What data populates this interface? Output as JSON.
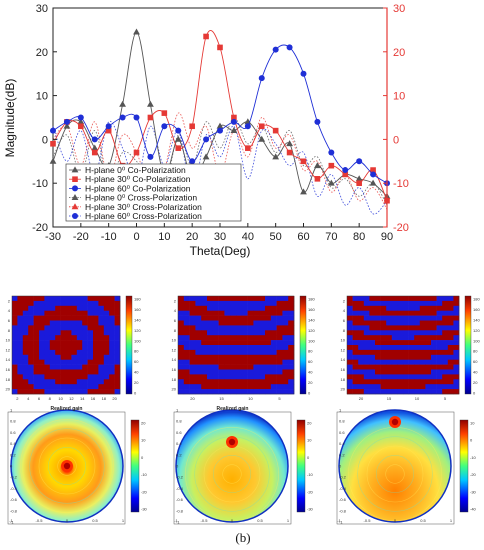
{
  "chart_data": [
    {
      "type": "line",
      "title": "",
      "xlabel": "Theta(Deg)",
      "ylabel": "Magnitude(dB)",
      "xlim": [
        -30,
        90
      ],
      "ylim": [
        -20,
        30
      ],
      "y2lim": [
        -20,
        30
      ],
      "xticks": [
        "-30",
        "-20",
        "-10",
        "0",
        "10",
        "20",
        "30",
        "40",
        "50",
        "60",
        "70",
        "80",
        "90"
      ],
      "yticks": [
        "-20",
        "-10",
        "0",
        "10",
        "20",
        "30"
      ],
      "y2ticks": [
        "-20",
        "-10",
        "0",
        "10",
        "20",
        "30"
      ],
      "legend_position": "lower-left",
      "colors": {
        "gray": "#555555",
        "red": "#e53935",
        "blue": "#1f2fd6",
        "right_axis": "#e53935"
      },
      "series": [
        {
          "name": "H-plane 0⁰  Co-Polarization",
          "color": "#555555",
          "marker": "triangle",
          "line": "solid",
          "x": [
            -30,
            -25,
            -20,
            -15,
            -10,
            -5,
            0,
            5,
            10,
            15,
            20,
            25,
            30,
            35,
            40,
            45,
            50,
            55,
            60,
            65,
            70,
            75,
            80,
            85,
            90
          ],
          "y": [
            -5,
            3,
            4,
            -2,
            -6,
            8,
            24.5,
            8,
            -8,
            0,
            -9,
            -4,
            3,
            2,
            4,
            0,
            -4,
            -1,
            -12,
            -6,
            -10,
            -8,
            -9,
            -10,
            -13
          ]
        },
        {
          "name": "H-plane 30⁰  Co-Polarization",
          "color": "#e53935",
          "marker": "square",
          "line": "solid",
          "x": [
            -30,
            -25,
            -20,
            -15,
            -10,
            -5,
            0,
            5,
            10,
            15,
            20,
            25,
            30,
            35,
            40,
            45,
            50,
            55,
            60,
            65,
            70,
            75,
            80,
            85,
            90
          ],
          "y": [
            -1,
            4,
            3,
            -3,
            2,
            -6,
            -3,
            5,
            6,
            -2,
            3,
            23.5,
            21,
            5,
            -2,
            3,
            2,
            -3,
            -5,
            -9,
            -6,
            -8,
            -10,
            -7,
            -14
          ]
        },
        {
          "name": "H-plane 60⁰  Co-Polarization",
          "color": "#1f2fd6",
          "marker": "circle",
          "line": "solid",
          "x": [
            -30,
            -25,
            -20,
            -15,
            -10,
            -5,
            0,
            5,
            10,
            15,
            20,
            25,
            30,
            35,
            40,
            45,
            50,
            55,
            60,
            65,
            70,
            75,
            80,
            85,
            90
          ],
          "y": [
            2,
            4,
            5,
            0,
            3,
            5,
            5,
            -4,
            3,
            2,
            -5,
            0,
            2,
            4,
            3,
            14,
            20.5,
            21,
            15,
            4,
            -3,
            -7,
            -5,
            -8,
            -10
          ]
        },
        {
          "name": "H-plane 0⁰  Cross-Polarization",
          "color": "#555555",
          "marker": "triangle",
          "line": "dotted",
          "x": [
            -30,
            -25,
            -20,
            -15,
            -10,
            -5,
            0,
            5,
            10,
            15,
            20,
            25,
            30,
            35,
            40,
            45,
            50,
            55,
            60,
            65,
            70,
            75,
            80,
            85,
            90
          ],
          "y": [
            -4,
            1,
            -8,
            2,
            -10,
            -3,
            -5,
            -9,
            -12,
            1,
            -6,
            4,
            -2,
            5,
            -1,
            3,
            -3,
            2,
            -6,
            -4,
            -11,
            -9,
            -13,
            -10,
            -15
          ]
        },
        {
          "name": "H-plane 30⁰  Cross-Polarization",
          "color": "#e53935",
          "marker": "triangle",
          "line": "dotted",
          "x": [
            -30,
            -25,
            -20,
            -15,
            -10,
            -5,
            0,
            5,
            10,
            15,
            20,
            25,
            30,
            35,
            40,
            45,
            50,
            55,
            60,
            65,
            70,
            75,
            80,
            85,
            90
          ],
          "y": [
            0,
            3,
            -6,
            4,
            -9,
            1,
            -3,
            -11,
            -7,
            6,
            -2,
            3,
            -8,
            2,
            -4,
            5,
            -2,
            1,
            -7,
            -5,
            -12,
            -8,
            -14,
            -11,
            -16
          ]
        },
        {
          "name": "H-plane 60⁰  Cross-Polarization",
          "color": "#1f2fd6",
          "marker": "circle",
          "line": "dotted",
          "x": [
            -30,
            -25,
            -20,
            -15,
            -10,
            -5,
            0,
            5,
            10,
            15,
            20,
            25,
            30,
            35,
            40,
            45,
            50,
            55,
            60,
            65,
            70,
            75,
            80,
            85,
            90
          ],
          "y": [
            3,
            -5,
            2,
            -8,
            4,
            -2,
            -10,
            3,
            -6,
            2,
            -12,
            1,
            -4,
            3,
            -9,
            2,
            -1,
            -6,
            -3,
            -13,
            -8,
            -15,
            -11,
            -17,
            -14
          ]
        }
      ]
    },
    {
      "type": "heatmap",
      "panels": [
        {
          "pattern": "rings",
          "xticks": [
            "2",
            "4",
            "6",
            "8",
            "10",
            "12",
            "14",
            "16",
            "18",
            "20"
          ],
          "yticks": [
            "2",
            "4",
            "6",
            "8",
            "10",
            "12",
            "14",
            "16",
            "18",
            "20"
          ],
          "colorbar_ticks": [
            "180",
            "160",
            "140",
            "120",
            "100",
            "80",
            "60",
            "40",
            "20",
            "0"
          ]
        },
        {
          "pattern": "arcs-wide",
          "xticks": [
            "20",
            "15",
            "10",
            "5"
          ],
          "yticks": [
            "2",
            "4",
            "6",
            "8",
            "10",
            "12",
            "14",
            "16",
            "18",
            "20"
          ],
          "colorbar_ticks": [
            "180",
            "160",
            "140",
            "120",
            "100",
            "80",
            "60",
            "40",
            "20",
            "0"
          ]
        },
        {
          "pattern": "arcs-narrow",
          "xticks": [
            "20",
            "15",
            "10",
            "5"
          ],
          "yticks": [
            "2",
            "4",
            "6",
            "8",
            "10",
            "12",
            "14",
            "16",
            "18",
            "20"
          ],
          "colorbar_ticks": [
            "180",
            "160",
            "140",
            "120",
            "100",
            "80",
            "60",
            "40",
            "20",
            "0"
          ]
        }
      ]
    },
    {
      "type": "heatmap",
      "panels": [
        {
          "title": "Realized gain",
          "beam": "center",
          "xticks": [
            "-1",
            "-0.5",
            "0",
            "0.5",
            "1"
          ],
          "yticks": [
            "-1",
            "-0.8",
            "-0.6",
            "-0.4",
            "-0.2",
            "0",
            "0.2",
            "0.4",
            "0.6",
            "0.8",
            "1"
          ],
          "colorbar_ticks": [
            "20",
            "10",
            "0",
            "-10",
            "-20",
            "-30"
          ]
        },
        {
          "title": "Realized gain",
          "beam": "mid",
          "xticks": [
            "-1",
            "-0.5",
            "0",
            "0.5",
            "1"
          ],
          "yticks": [
            "-1",
            "-0.8",
            "-0.6",
            "-0.4",
            "-0.2",
            "0",
            "0.2",
            "0.4",
            "0.6",
            "0.8",
            "1"
          ],
          "colorbar_ticks": [
            "20",
            "10",
            "0",
            "-10",
            "-20",
            "-30"
          ]
        },
        {
          "title": "",
          "beam": "edge",
          "xticks": [
            "-1",
            "-0.5",
            "0",
            "0.5",
            "1"
          ],
          "yticks": [
            "-1",
            "-0.8",
            "-0.6",
            "-0.4",
            "-0.2",
            "0",
            "0.2",
            "0.4",
            "0.6",
            "0.8",
            "1"
          ],
          "colorbar_ticks": [
            "10",
            "0",
            "-10",
            "-20",
            "-30",
            "-40"
          ]
        }
      ]
    }
  ],
  "caption": "(b)"
}
